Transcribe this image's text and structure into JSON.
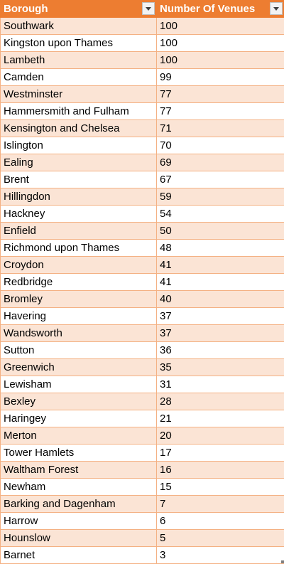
{
  "headers": [
    "Borough",
    "Number Of Venues"
  ],
  "rows": [
    [
      "Southwark",
      "100"
    ],
    [
      "Kingston upon Thames",
      "100"
    ],
    [
      "Lambeth",
      "100"
    ],
    [
      "Camden",
      "99"
    ],
    [
      "Westminster",
      "77"
    ],
    [
      "Hammersmith and Fulham",
      "77"
    ],
    [
      "Kensington and Chelsea",
      "71"
    ],
    [
      "Islington",
      "70"
    ],
    [
      "Ealing",
      "69"
    ],
    [
      "Brent",
      "67"
    ],
    [
      "Hillingdon",
      "59"
    ],
    [
      "Hackney",
      "54"
    ],
    [
      "Enfield",
      "50"
    ],
    [
      "Richmond upon Thames",
      "48"
    ],
    [
      "Croydon",
      "41"
    ],
    [
      "Redbridge",
      "41"
    ],
    [
      "Bromley",
      "40"
    ],
    [
      "Havering",
      "37"
    ],
    [
      "Wandsworth",
      "37"
    ],
    [
      "Sutton",
      "36"
    ],
    [
      "Greenwich",
      "35"
    ],
    [
      "Lewisham",
      "31"
    ],
    [
      "Bexley",
      "28"
    ],
    [
      "Haringey",
      "21"
    ],
    [
      "Merton",
      "20"
    ],
    [
      "Tower Hamlets",
      "17"
    ],
    [
      "Waltham Forest",
      "16"
    ],
    [
      "Newham",
      "15"
    ],
    [
      "Barking and Dagenham",
      "7"
    ],
    [
      "Harrow",
      "6"
    ],
    [
      "Hounslow",
      "5"
    ],
    [
      "Barnet",
      "3"
    ]
  ],
  "colors": {
    "header_bg": "#ed7d31",
    "band_odd": "#fbe4d5",
    "band_even": "#ffffff",
    "border": "#f4b183"
  }
}
